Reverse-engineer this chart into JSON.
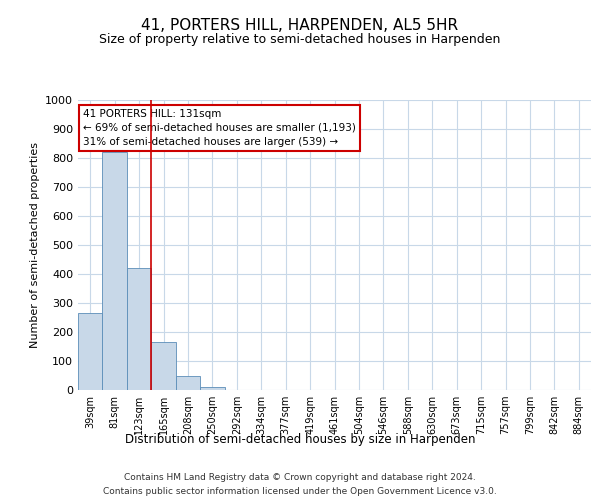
{
  "title": "41, PORTERS HILL, HARPENDEN, AL5 5HR",
  "subtitle": "Size of property relative to semi-detached houses in Harpenden",
  "xlabel": "Distribution of semi-detached houses by size in Harpenden",
  "ylabel": "Number of semi-detached properties",
  "categories": [
    "39sqm",
    "81sqm",
    "123sqm",
    "165sqm",
    "208sqm",
    "250sqm",
    "292sqm",
    "334sqm",
    "377sqm",
    "419sqm",
    "461sqm",
    "504sqm",
    "546sqm",
    "588sqm",
    "630sqm",
    "673sqm",
    "715sqm",
    "757sqm",
    "799sqm",
    "842sqm",
    "884sqm"
  ],
  "values": [
    265,
    820,
    420,
    165,
    50,
    12,
    0,
    0,
    0,
    0,
    0,
    0,
    0,
    0,
    0,
    0,
    0,
    0,
    0,
    0,
    0
  ],
  "bar_color": "#c8d8e8",
  "bar_edge_color": "#5b8db8",
  "grid_color": "#c8d8e8",
  "property_line_x": 2.5,
  "annotation_line1": "41 PORTERS HILL: 131sqm",
  "annotation_line2": "← 69% of semi-detached houses are smaller (1,193)",
  "annotation_line3": "31% of semi-detached houses are larger (539) →",
  "annotation_box_color": "#ffffff",
  "annotation_box_edge_color": "#cc0000",
  "ylim": [
    0,
    1000
  ],
  "yticks": [
    0,
    100,
    200,
    300,
    400,
    500,
    600,
    700,
    800,
    900,
    1000
  ],
  "footer_line1": "Contains HM Land Registry data © Crown copyright and database right 2024.",
  "footer_line2": "Contains public sector information licensed under the Open Government Licence v3.0.",
  "background_color": "#ffffff",
  "title_fontsize": 11,
  "subtitle_fontsize": 9,
  "axis_label_fontsize": 8,
  "tick_fontsize": 7
}
